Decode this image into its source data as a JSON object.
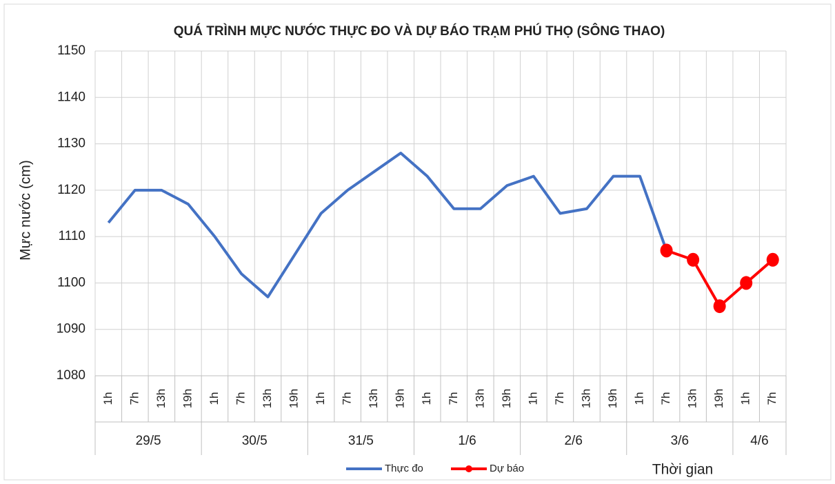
{
  "chart_data": {
    "type": "line",
    "title": "QUÁ TRÌNH MỰC NƯỚC THỰC ĐO VÀ DỰ BÁO TRẠM PHÚ THỌ (SÔNG THAO)",
    "y_label": "Mực nước (cm)",
    "x_label": "Thời gian",
    "category_groups": [
      {
        "label": "29/5",
        "categories": [
          "1h",
          "7h",
          "13h",
          "19h"
        ]
      },
      {
        "label": "30/5",
        "categories": [
          "1h",
          "7h",
          "13h",
          "19h"
        ]
      },
      {
        "label": "31/5",
        "categories": [
          "1h",
          "7h",
          "13h",
          "19h"
        ]
      },
      {
        "label": "1/6",
        "categories": [
          "1h",
          "7h",
          "13h",
          "19h"
        ]
      },
      {
        "label": "2/6",
        "categories": [
          "1h",
          "7h",
          "13h",
          "19h"
        ]
      },
      {
        "label": "3/6",
        "categories": [
          "1h",
          "7h",
          "13h",
          "19h"
        ]
      },
      {
        "label": "4/6",
        "categories": [
          "1h",
          "7h"
        ]
      }
    ],
    "series": [
      {
        "name": "Thực đo",
        "color": "#4472c4",
        "marker": false,
        "values": [
          1113,
          1120,
          1120,
          1117,
          1110,
          1102,
          1097,
          1106,
          1115,
          1120,
          1124,
          1128,
          1123,
          1116,
          1116,
          1121,
          1123,
          1115,
          1116,
          1123,
          1123,
          1107,
          null,
          null,
          null,
          null
        ]
      },
      {
        "name": "Dự báo",
        "color": "#ff0000",
        "marker": true,
        "values": [
          null,
          null,
          null,
          null,
          null,
          null,
          null,
          null,
          null,
          null,
          null,
          null,
          null,
          null,
          null,
          null,
          null,
          null,
          null,
          null,
          null,
          1107,
          1105,
          1095,
          1100,
          1105
        ]
      }
    ],
    "ylim": [
      1080,
      1150
    ],
    "yticks": [
      1080,
      1090,
      1100,
      1110,
      1120,
      1130,
      1140,
      1150
    ],
    "grid": true
  }
}
